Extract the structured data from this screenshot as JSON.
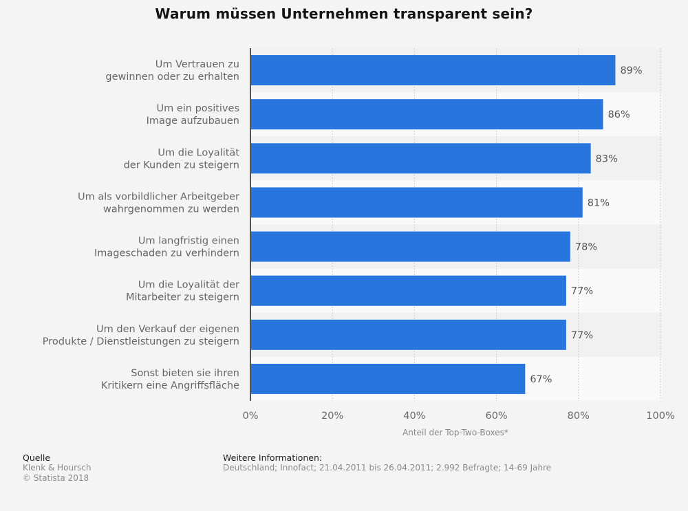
{
  "chart_data": {
    "type": "bar",
    "orientation": "horizontal",
    "title": "Warum müssen Unternehmen transparent sein?",
    "categories": [
      [
        "Um Vertrauen zu",
        "gewinnen oder zu erhalten"
      ],
      [
        "Um ein positives",
        "Image aufzubauen"
      ],
      [
        "Um die Loyalität",
        "der Kunden zu steigern"
      ],
      [
        "Um als vorbildlicher Arbeitgeber",
        "wahrgenommen zu werden"
      ],
      [
        "Um langfristig einen",
        "Imageschaden zu verhindern"
      ],
      [
        "Um die Loyalität der",
        "Mitarbeiter zu steigern"
      ],
      [
        "Um den Verkauf der eigenen",
        "Produkte / Dienstleistungen zu steigern"
      ],
      [
        "Sonst bieten sie ihren",
        "Kritikern eine Angriffsfläche"
      ]
    ],
    "values": [
      89,
      86,
      83,
      81,
      78,
      77,
      77,
      67
    ],
    "value_labels": [
      "89%",
      "86%",
      "83%",
      "81%",
      "78%",
      "77%",
      "77%",
      "67%"
    ],
    "xlabel": "Anteil der Top-Two-Boxes*",
    "ylabel": "",
    "xlim": [
      0,
      100
    ],
    "xticks": [
      0,
      20,
      40,
      60,
      80,
      100
    ],
    "xtick_labels": [
      "0%",
      "20%",
      "40%",
      "60%",
      "80%",
      "100%"
    ],
    "grid": true,
    "legend": "none",
    "colors": {
      "bar": "#2876dd",
      "axis": "#555555",
      "grid": "#cccccc",
      "stripe_dark": "#f1f1f1",
      "stripe_light": "#f9f9f9"
    }
  },
  "footer": {
    "source_heading": "Quelle",
    "source_lines": [
      "Klenk & Hoursch",
      "© Statista 2018"
    ],
    "info_heading": "Weitere Informationen:",
    "info_text": "Deutschland; Innofact; 21.04.2011 bis 26.04.2011; 2.992 Befragte; 14-69 Jahre"
  }
}
